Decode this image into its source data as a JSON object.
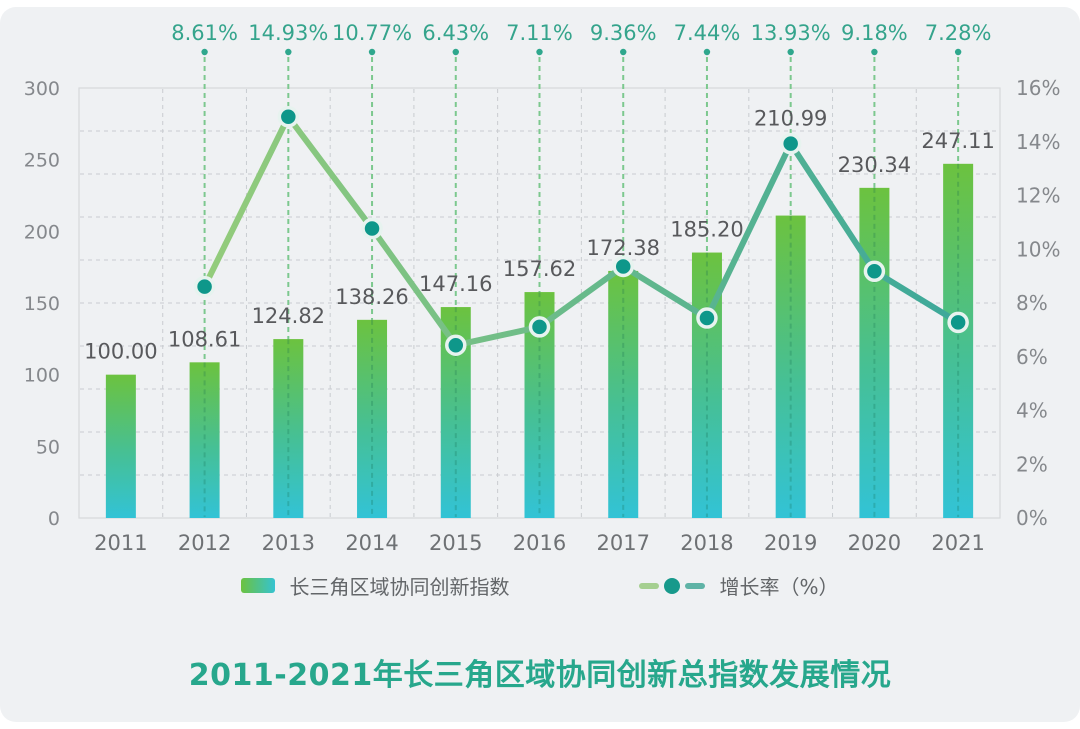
{
  "title": "2011-2021年长三角区域协同创新总指数发展情况",
  "legend": {
    "bar_label": "长三角区域协同创新指数",
    "line_label": "增长率（%）"
  },
  "chart_data": {
    "type": "combo",
    "title": "2011-2021年长三角区域协同创新总指数发展情况",
    "categories": [
      "2011",
      "2012",
      "2013",
      "2014",
      "2015",
      "2016",
      "2017",
      "2018",
      "2019",
      "2020",
      "2021"
    ],
    "series": [
      {
        "name": "长三角区域协同创新指数",
        "type": "bar",
        "yaxis": "left",
        "values": [
          100.0,
          108.61,
          124.82,
          138.26,
          147.16,
          157.62,
          172.38,
          185.2,
          210.99,
          230.34,
          247.11
        ],
        "labels": [
          "100.00",
          "108.61",
          "124.82",
          "138.26",
          "147.16",
          "157.62",
          "172.38",
          "185.20",
          "210.99",
          "230.34",
          "247.11"
        ]
      },
      {
        "name": "增长率（%）",
        "type": "line",
        "yaxis": "right",
        "values": [
          null,
          8.61,
          14.93,
          10.77,
          6.43,
          7.11,
          9.36,
          7.44,
          13.93,
          9.18,
          7.28
        ],
        "labels": [
          null,
          "8.61%",
          "14.93%",
          "10.77%",
          "6.43%",
          "7.11%",
          "9.36%",
          "7.44%",
          "13.93%",
          "9.18%",
          "7.28%"
        ]
      }
    ],
    "left_axis": {
      "min": 0,
      "max": 300,
      "tick_step": 50,
      "tick_labels": [
        "0",
        "50",
        "100",
        "150",
        "200",
        "250",
        "300"
      ]
    },
    "right_axis": {
      "min": 0,
      "max": 16,
      "tick_step": 2,
      "tick_labels": [
        "0%",
        "2%",
        "4%",
        "6%",
        "8%",
        "10%",
        "12%",
        "14%",
        "16%"
      ]
    },
    "grid": {
      "horizontal_splits": 10,
      "vertical_lines_at_category_boundaries": true,
      "style": "dashed"
    },
    "legend_position": "bottom"
  },
  "colors": {
    "card_bg": "#eff1f3",
    "bar_top": "#6cc23f",
    "bar_mid": "#46c095",
    "bar_bottom": "#32c3d6",
    "line_start": "#94cc7b",
    "line_end": "#3ca89a",
    "dot_fill": "#0e978a",
    "dot_ring": "#e7f3ef",
    "growth_label": "#35a48c",
    "dropline": "#7cc88e",
    "dropline_marker": "#2fa78d",
    "value_label": "#58595c",
    "axis_tick": "#85888c",
    "year_label": "#6e7174",
    "gridline": "#c9ccd0",
    "plot_border": "#d6d9db",
    "legend_text": "#636669",
    "title_text": "#27a78c"
  }
}
